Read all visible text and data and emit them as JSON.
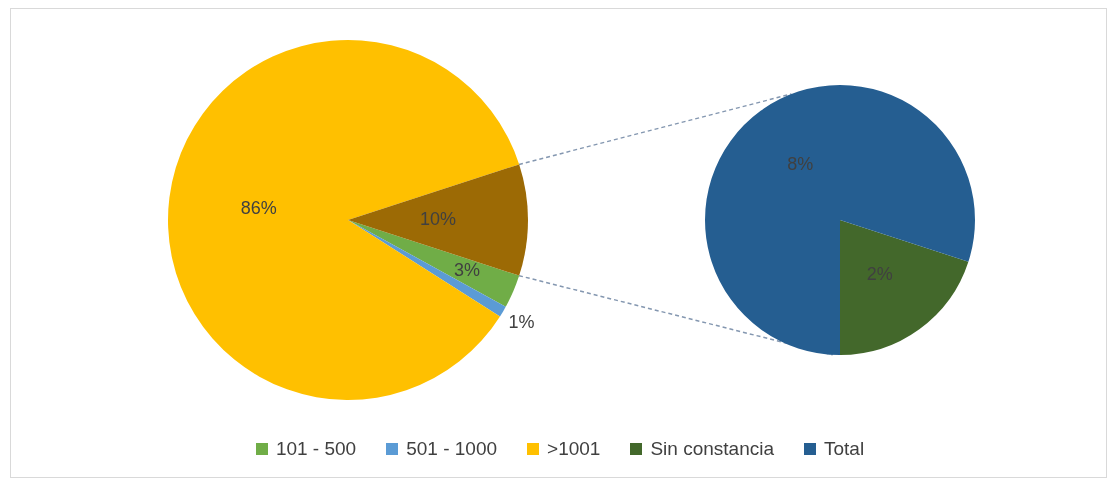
{
  "chart_data": [
    {
      "type": "pie",
      "categories": [
        "101 - 500",
        "501 - 1000",
        ">1001",
        null
      ],
      "values": [
        3,
        1,
        86,
        10
      ],
      "colors": [
        "#70ad47",
        "#5b9bd5",
        "#ffc000",
        "#9c6a05"
      ],
      "value_labels": [
        "3%",
        "1%",
        "86%",
        "10%"
      ],
      "legend": "bottom"
    },
    {
      "type": "pie",
      "categories": [
        "Sin constancia",
        "Total"
      ],
      "values": [
        2,
        8
      ],
      "colors": [
        "#43682b",
        "#255e91"
      ],
      "value_labels": [
        "2%",
        "8%"
      ],
      "legend": "bottom"
    }
  ]
}
